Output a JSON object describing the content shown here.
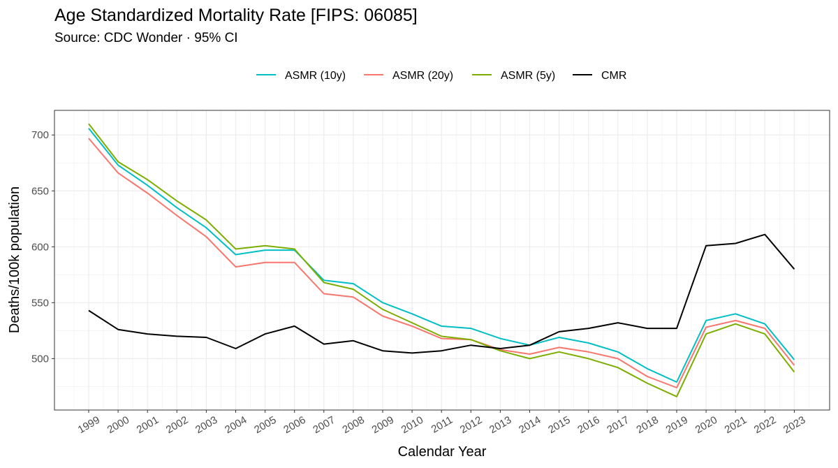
{
  "chart_data": {
    "type": "line",
    "title": "Age Standardized Mortality Rate [FIPS: 06085]",
    "subtitle": "Source: CDC Wonder · 95% CI",
    "xlabel": "Calendar Year",
    "ylabel": "Deaths/100k population",
    "ylim": [
      454,
      722
    ],
    "y_ticks": [
      500,
      550,
      600,
      650,
      700
    ],
    "grid": true,
    "legend_position": "top",
    "categories": [
      "1999",
      "2000",
      "2001",
      "2002",
      "2003",
      "2004",
      "2005",
      "2006",
      "2007",
      "2008",
      "2009",
      "2010",
      "2011",
      "2012",
      "2013",
      "2014",
      "2015",
      "2016",
      "2017",
      "2018",
      "2019",
      "2020",
      "2021",
      "2022",
      "2023"
    ],
    "series": [
      {
        "name": "ASMR (10y)",
        "color": "#00bfc4",
        "values": [
          706,
          673,
          655,
          635,
          617,
          593,
          597,
          597,
          570,
          567,
          550,
          540,
          529,
          527,
          518,
          512,
          519,
          514,
          506,
          491,
          479,
          534,
          540,
          531,
          499
        ]
      },
      {
        "name": "ASMR (20y)",
        "color": "#f8766d",
        "values": [
          697,
          666,
          648,
          628,
          609,
          582,
          586,
          586,
          558,
          555,
          538,
          529,
          518,
          517,
          508,
          504,
          510,
          506,
          500,
          484,
          474,
          528,
          534,
          527,
          494
        ]
      },
      {
        "name": "ASMR (5y)",
        "color": "#7cae00",
        "values": [
          710,
          676,
          660,
          641,
          624,
          598,
          601,
          598,
          568,
          562,
          544,
          532,
          520,
          517,
          507,
          500,
          506,
          500,
          492,
          478,
          466,
          522,
          531,
          522,
          488
        ]
      },
      {
        "name": "CMR",
        "color": "#000000",
        "values": [
          543,
          526,
          522,
          520,
          519,
          509,
          522,
          529,
          513,
          516,
          507,
          505,
          507,
          512,
          509,
          512,
          524,
          527,
          532,
          527,
          527,
          601,
          603,
          611,
          580
        ]
      }
    ]
  }
}
